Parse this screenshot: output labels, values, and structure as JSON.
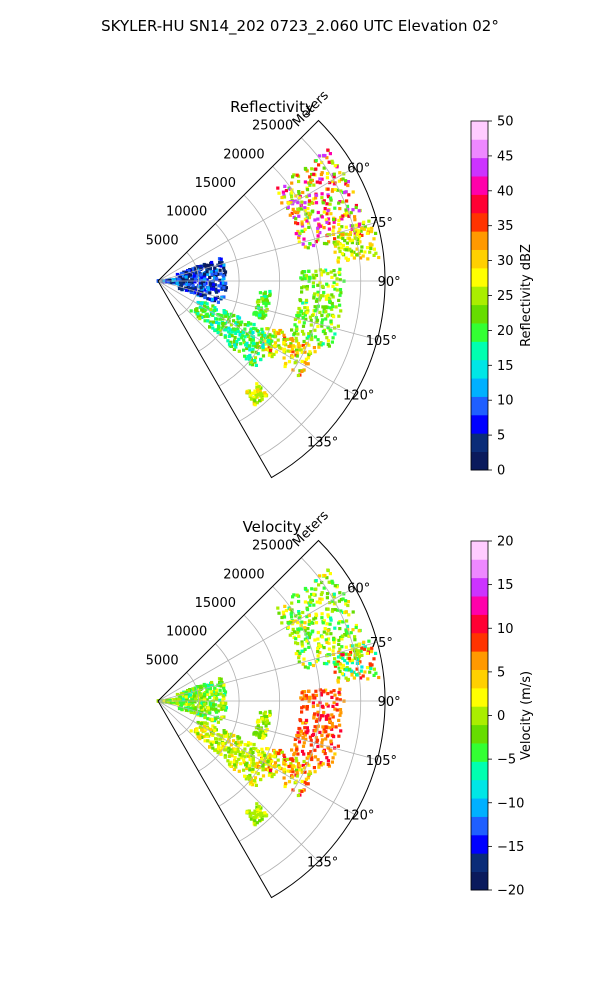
{
  "figure": {
    "suptitle": "SKYLER-HU  SN14_202  0723_2.060 UTC Elevation 02°"
  },
  "chart_data": [
    {
      "type": "heatmap",
      "projection": "polar-sector",
      "title": "Reflectivity",
      "range_label": "Meters",
      "range_ticks": [
        5000,
        10000,
        15000,
        20000,
        25000
      ],
      "range_max": 28000,
      "azimuth_range_deg": [
        45,
        150
      ],
      "azimuth_ticks": [
        "60°",
        "75°",
        "90°",
        "105°",
        "120°",
        "135°"
      ],
      "azimuth_tick_values": [
        60,
        75,
        90,
        105,
        120,
        135
      ],
      "grid": true,
      "colorbar": {
        "label": "Reflectivity dBZ",
        "range": [
          0,
          50
        ],
        "ticks": [
          "0",
          "5",
          "10",
          "15",
          "20",
          "25",
          "30",
          "35",
          "40",
          "45",
          "50"
        ],
        "tick_values": [
          0,
          5,
          10,
          15,
          20,
          25,
          30,
          35,
          40,
          45,
          50
        ],
        "colors": [
          "#0a1a5c",
          "#0a2c78",
          "#0000ff",
          "#1f5fff",
          "#00b0ff",
          "#00e6e6",
          "#00ffb0",
          "#33ff33",
          "#66dd00",
          "#aaee00",
          "#ffff00",
          "#ffd000",
          "#ff9900",
          "#ff3300",
          "#ff0033",
          "#ff00aa",
          "#cc33ff",
          "#ee88ff",
          "#ffccff"
        ]
      },
      "features": [
        {
          "az": [
            52,
            78
          ],
          "r": [
            18000,
            26500
          ],
          "v_range": [
            20,
            45
          ]
        },
        {
          "az": [
            74,
            84
          ],
          "r": [
            22000,
            27500
          ],
          "v_range": [
            22,
            32
          ]
        },
        {
          "az": [
            86,
            112
          ],
          "r": [
            17500,
            23000
          ],
          "v_range": [
            18,
            28
          ]
        },
        {
          "az": [
            112,
            124
          ],
          "r": [
            14500,
            21500
          ],
          "v_range": [
            22,
            35
          ]
        },
        {
          "az": [
            114,
            132
          ],
          "r": [
            5500,
            16000
          ],
          "v_range": [
            15,
            24
          ]
        },
        {
          "az": [
            136,
            142
          ],
          "r": [
            17500,
            19500
          ],
          "v_range": [
            22,
            30
          ]
        },
        {
          "az": [
            70,
            110
          ],
          "r": [
            2500,
            8500
          ],
          "v_range": [
            0,
            12
          ]
        },
        {
          "az": [
            84,
            98
          ],
          "r": [
            0,
            2500
          ],
          "v_range": [
            2,
            14
          ]
        },
        {
          "az": [
            95,
            110
          ],
          "r": [
            12500,
            14000
          ],
          "v_range": [
            18,
            24
          ]
        }
      ]
    },
    {
      "type": "heatmap",
      "projection": "polar-sector",
      "title": "Velocity",
      "range_label": "Meters",
      "range_ticks": [
        5000,
        10000,
        15000,
        20000,
        25000
      ],
      "range_max": 28000,
      "azimuth_range_deg": [
        45,
        150
      ],
      "azimuth_ticks": [
        "60°",
        "75°",
        "90°",
        "105°",
        "120°",
        "135°"
      ],
      "azimuth_tick_values": [
        60,
        75,
        90,
        105,
        120,
        135
      ],
      "grid": true,
      "colorbar": {
        "label": "Velocity (m/s)",
        "range": [
          -20,
          20
        ],
        "ticks": [
          "−20",
          "−15",
          "−10",
          "−5",
          "0",
          "5",
          "10",
          "15",
          "20"
        ],
        "tick_values": [
          -20,
          -15,
          -10,
          -5,
          0,
          5,
          10,
          15,
          20
        ],
        "colors": [
          "#0a1a5c",
          "#0a2c78",
          "#0000ff",
          "#1f5fff",
          "#00b0ff",
          "#00e6e6",
          "#00ffb0",
          "#33ff33",
          "#66dd00",
          "#aaee00",
          "#ffff00",
          "#ffd000",
          "#ff9900",
          "#ff3300",
          "#ff0033",
          "#ff00aa",
          "#cc33ff",
          "#ee88ff",
          "#ffccff"
        ]
      },
      "features": [
        {
          "az": [
            52,
            78
          ],
          "r": [
            18000,
            26500
          ],
          "v_range": [
            -6,
            4
          ]
        },
        {
          "az": [
            74,
            84
          ],
          "r": [
            22000,
            27500
          ],
          "v_range": [
            -8,
            10
          ]
        },
        {
          "az": [
            86,
            112
          ],
          "r": [
            17500,
            23000
          ],
          "v_range": [
            5,
            11
          ]
        },
        {
          "az": [
            112,
            124
          ],
          "r": [
            14500,
            21500
          ],
          "v_range": [
            -2,
            10
          ]
        },
        {
          "az": [
            114,
            132
          ],
          "r": [
            5500,
            16000
          ],
          "v_range": [
            -2,
            4
          ]
        },
        {
          "az": [
            136,
            142
          ],
          "r": [
            17500,
            19500
          ],
          "v_range": [
            -3,
            2
          ]
        },
        {
          "az": [
            70,
            110
          ],
          "r": [
            2500,
            8500
          ],
          "v_range": [
            -6,
            2
          ]
        },
        {
          "az": [
            84,
            98
          ],
          "r": [
            0,
            2500
          ],
          "v_range": [
            -4,
            2
          ]
        },
        {
          "az": [
            95,
            110
          ],
          "r": [
            12500,
            14000
          ],
          "v_range": [
            -3,
            3
          ]
        }
      ]
    }
  ]
}
